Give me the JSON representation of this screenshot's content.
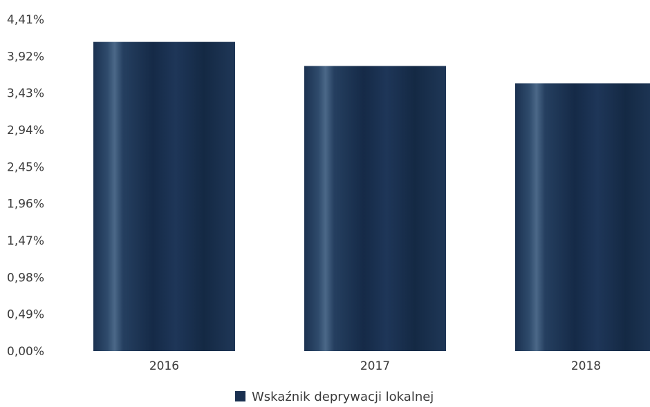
{
  "chart_data": {
    "type": "bar",
    "title": "",
    "xlabel": "",
    "ylabel": "",
    "categories": [
      "2016",
      "2017",
      "2018"
    ],
    "series": [
      {
        "name": "Wskaźnik deprywacji lokalnej",
        "values": [
          4.11,
          3.79,
          3.56
        ]
      }
    ],
    "ylim": [
      0,
      4.41
    ],
    "yticks": [
      "0,00%",
      "0,49%",
      "0,98%",
      "1,47%",
      "1,96%",
      "2,45%",
      "2,94%",
      "3,43%",
      "3,92%",
      "4,41%"
    ],
    "ytick_values": [
      0,
      0.49,
      0.98,
      1.47,
      1.96,
      2.45,
      2.94,
      3.43,
      3.92,
      4.41
    ],
    "grid": false,
    "legend_position": "bottom",
    "bar_color": "#1a3050",
    "bar_highlight_color": "#4d6a8a"
  }
}
